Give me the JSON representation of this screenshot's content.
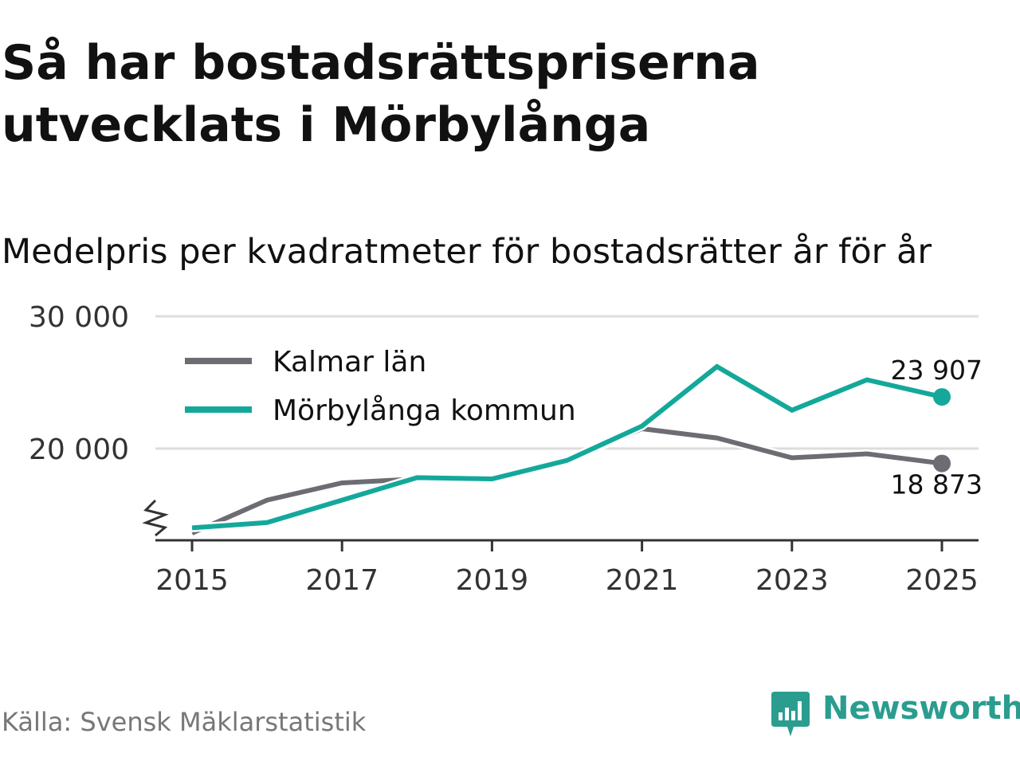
{
  "header": {
    "title": "Så har bostadsrättspriserna utvecklats i Mörbylånga",
    "subtitle": "Medelpris per kvadratmeter för bostadsrätter år för år"
  },
  "footer": {
    "source": "Källa: Svensk Mäklarstatistik",
    "brand": "Newsworthy"
  },
  "colors": {
    "kalmar": "#6e6c73",
    "morbylanga": "#14a89b",
    "grid": "#dddddd",
    "axis": "#333333",
    "brand": "#2a9d8f"
  },
  "chart_data": {
    "type": "line",
    "title": "Medelpris per kvadratmeter för bostadsrätter år för år",
    "xlabel": "",
    "ylabel": "",
    "x": [
      2015,
      2016,
      2017,
      2018,
      2019,
      2020,
      2021,
      2022,
      2023,
      2024,
      2025
    ],
    "xticks": [
      2015,
      2017,
      2019,
      2021,
      2023,
      2025
    ],
    "xtick_labels": [
      "2015",
      "2017",
      "2019",
      "2021",
      "2023",
      "2025"
    ],
    "ylim": [
      13000,
      30000
    ],
    "yticks": [
      20000,
      30000
    ],
    "ytick_labels": [
      "20 000",
      "30 000"
    ],
    "y_axis_break": true,
    "grid": true,
    "legend_position": "top-left",
    "series": [
      {
        "name": "Kalmar län",
        "key": "kalmar",
        "values": [
          13600,
          16100,
          17400,
          17700,
          17700,
          19100,
          21500,
          20800,
          19300,
          19600,
          18873
        ],
        "end_label": "18 873"
      },
      {
        "name": "Mörbylånga kommun",
        "key": "morbylanga",
        "values": [
          14000,
          14400,
          16100,
          17800,
          17700,
          19100,
          21700,
          26200,
          22900,
          25200,
          23907
        ],
        "end_label": "23 907"
      }
    ]
  }
}
